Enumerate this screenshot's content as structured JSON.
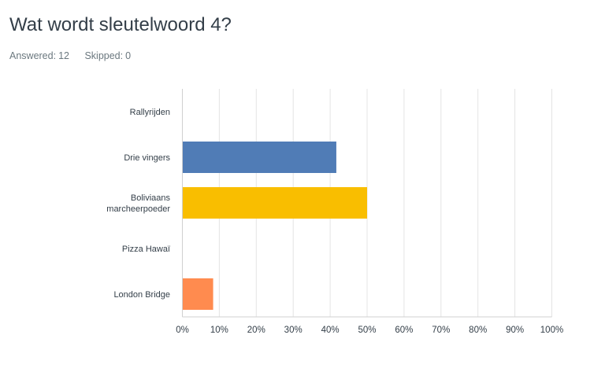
{
  "question": {
    "title": "Wat wordt sleutelwoord 4?",
    "answered_label": "Answered:",
    "answered_value": "12",
    "skipped_label": "Skipped:",
    "skipped_value": "0"
  },
  "chart_data": {
    "type": "bar",
    "orientation": "horizontal",
    "categories": [
      "Rallyrijden",
      "Drie vingers",
      "Boliviaans marcheerpoeder",
      "Pizza Hawaï",
      "London Bridge"
    ],
    "category_lines": [
      [
        "Rallyrijden"
      ],
      [
        "Drie vingers"
      ],
      [
        "Boliviaans",
        "marcheerpoeder"
      ],
      [
        "Pizza Hawaï"
      ],
      [
        "London Bridge"
      ]
    ],
    "values": [
      0,
      41.67,
      50,
      0,
      8.33
    ],
    "colors": [
      "#507cb6",
      "#507cb6",
      "#f9be00",
      "#6bc8cd",
      "#ff8b4f"
    ],
    "xlim": [
      0,
      100
    ],
    "x_ticks": [
      0,
      10,
      20,
      30,
      40,
      50,
      60,
      70,
      80,
      90,
      100
    ],
    "x_tick_labels": [
      "0%",
      "10%",
      "20%",
      "30%",
      "40%",
      "50%",
      "60%",
      "70%",
      "80%",
      "90%",
      "100%"
    ],
    "grid": true,
    "title": "",
    "xlabel": "",
    "ylabel": ""
  }
}
